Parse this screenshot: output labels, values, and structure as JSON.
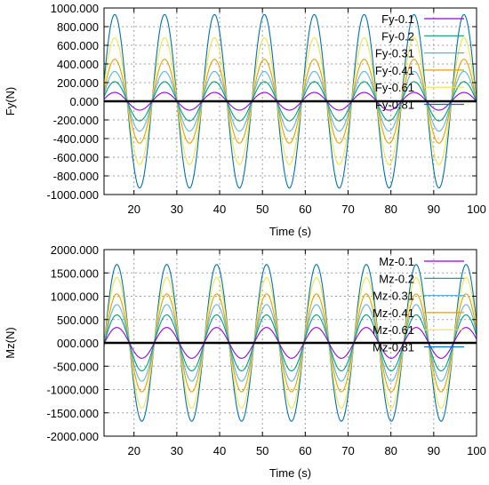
{
  "chart_data": [
    {
      "type": "line",
      "xlabel": "Time (s)",
      "ylabel": "Fy(N)",
      "xlim": [
        13,
        100
      ],
      "ylim": [
        -1000,
        1000
      ],
      "xticks": [
        "20",
        "30",
        "40",
        "50",
        "60",
        "70",
        "80",
        "90",
        "100"
      ],
      "yticks": [
        "1000.000",
        "800.000",
        "600.000",
        "400.000",
        "200.000",
        "0.000",
        "-200.000",
        "-400.000",
        "-600.000",
        "-800.000",
        "-1000.000"
      ],
      "grid": true,
      "legend_position": "top-right",
      "period_s": 11.65,
      "peak_time_s": 15.5,
      "series": [
        {
          "name": "Fy-0.1",
          "amplitude": 95,
          "color": "#9400d3"
        },
        {
          "name": "Fy-0.2",
          "amplitude": 210,
          "color": "#009e73"
        },
        {
          "name": "Fy-0.31",
          "amplitude": 320,
          "color": "#56b4e9"
        },
        {
          "name": "Fy-0.41",
          "amplitude": 450,
          "color": "#e69f00"
        },
        {
          "name": "Fy-0.61",
          "amplitude": 680,
          "color": "#f0e442"
        },
        {
          "name": "Fy-0.81",
          "amplitude": 930,
          "color": "#0072b2"
        }
      ]
    },
    {
      "type": "line",
      "xlabel": "Time (s)",
      "ylabel": "Mz(N)",
      "xlim": [
        13,
        100
      ],
      "ylim": [
        -2000,
        2000
      ],
      "xticks": [
        "20",
        "30",
        "40",
        "50",
        "60",
        "70",
        "80",
        "90",
        "100"
      ],
      "yticks": [
        "2000.000",
        "1500.000",
        "1000.000",
        "500.000",
        "000.000",
        "-500.000",
        "-1000.000",
        "-1500.000",
        "-2000.000"
      ],
      "grid": true,
      "legend_position": "top-right",
      "period_s": 11.65,
      "peak_time_s": 16.0,
      "series": [
        {
          "name": "Mz-0.1",
          "amplitude": 330,
          "color": "#9400d3"
        },
        {
          "name": "Mz-0.2",
          "amplitude": 600,
          "color": "#009e73"
        },
        {
          "name": "Mz-0.31",
          "amplitude": 820,
          "color": "#56b4e9"
        },
        {
          "name": "Mz-0.41",
          "amplitude": 1050,
          "color": "#e69f00"
        },
        {
          "name": "Mz-0.61",
          "amplitude": 1400,
          "color": "#f0e442"
        },
        {
          "name": "Mz-0.81",
          "amplitude": 1680,
          "color": "#0072b2"
        }
      ]
    }
  ]
}
